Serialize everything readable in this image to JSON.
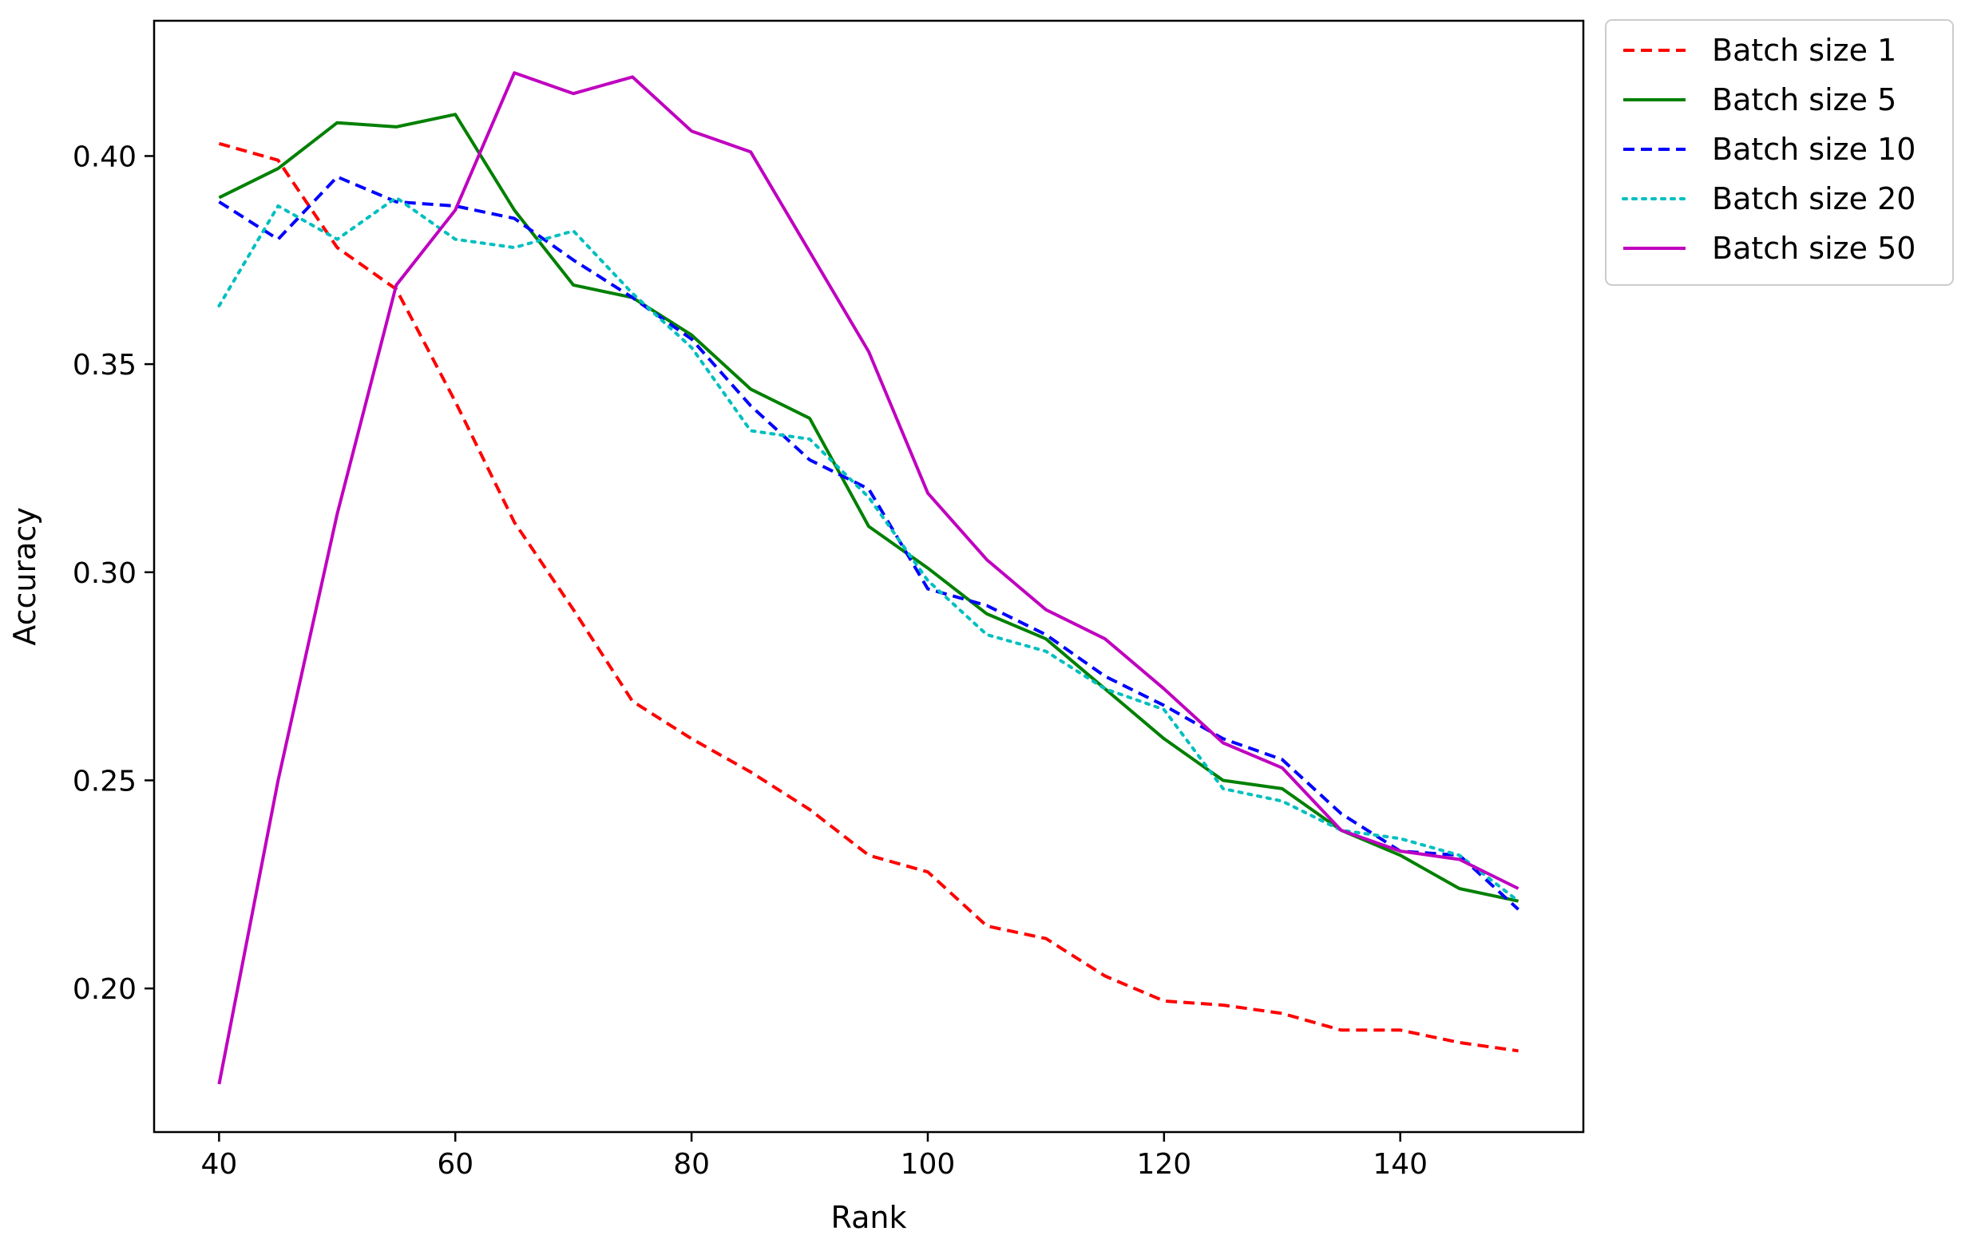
{
  "chart_data": {
    "type": "line",
    "title": "",
    "xlabel": "Rank",
    "ylabel": "Accuracy",
    "xlim": [
      34.5,
      155.5
    ],
    "ylim": [
      0.1655,
      0.4325
    ],
    "xticks": [
      40,
      60,
      80,
      100,
      120,
      140
    ],
    "xtick_labels": [
      "40",
      "60",
      "80",
      "100",
      "120",
      "140"
    ],
    "yticks": [
      0.2,
      0.25,
      0.3,
      0.35,
      0.4
    ],
    "ytick_labels": [
      "0.20",
      "0.25",
      "0.30",
      "0.35",
      "0.40"
    ],
    "grid": false,
    "legend_position": "outside top-right",
    "x": [
      40,
      45,
      50,
      55,
      60,
      65,
      70,
      75,
      80,
      85,
      90,
      95,
      100,
      105,
      110,
      115,
      120,
      125,
      130,
      135,
      140,
      145,
      150
    ],
    "series": [
      {
        "name": "Batch size 1",
        "color": "#ff0000",
        "style": "dashed",
        "values": [
          0.403,
          0.399,
          0.378,
          0.368,
          0.341,
          0.312,
          0.291,
          0.269,
          0.26,
          0.252,
          0.243,
          0.232,
          0.228,
          0.215,
          0.212,
          0.203,
          0.197,
          0.196,
          0.194,
          0.19,
          0.19,
          0.187,
          0.185
        ]
      },
      {
        "name": "Batch size 5",
        "color": "#008000",
        "style": "solid",
        "values": [
          0.39,
          0.397,
          0.408,
          0.407,
          0.41,
          0.387,
          0.369,
          0.366,
          0.357,
          0.344,
          0.337,
          0.311,
          0.301,
          0.29,
          0.284,
          0.272,
          0.26,
          0.25,
          0.248,
          0.238,
          0.232,
          0.224,
          0.221
        ]
      },
      {
        "name": "Batch size 10",
        "color": "#0000ff",
        "style": "dashed",
        "values": [
          0.389,
          0.38,
          0.395,
          0.389,
          0.388,
          0.385,
          0.375,
          0.366,
          0.356,
          0.34,
          0.327,
          0.32,
          0.296,
          0.292,
          0.285,
          0.275,
          0.268,
          0.26,
          0.255,
          0.242,
          0.233,
          0.232,
          0.219
        ]
      },
      {
        "name": "Batch size 20",
        "color": "#00bfbf",
        "style": "dotted",
        "values": [
          0.364,
          0.388,
          0.38,
          0.39,
          0.38,
          0.378,
          0.382,
          0.367,
          0.354,
          0.334,
          0.332,
          0.318,
          0.298,
          0.285,
          0.281,
          0.272,
          0.267,
          0.248,
          0.245,
          0.238,
          0.236,
          0.232,
          0.221
        ]
      },
      {
        "name": "Batch size 50",
        "color": "#bf00bf",
        "style": "solid",
        "values": [
          0.177,
          0.25,
          0.314,
          0.369,
          0.387,
          0.42,
          0.415,
          0.419,
          0.406,
          0.401,
          0.377,
          0.353,
          0.319,
          0.303,
          0.291,
          0.284,
          0.272,
          0.259,
          0.253,
          0.238,
          0.233,
          0.231,
          0.224
        ]
      }
    ]
  }
}
